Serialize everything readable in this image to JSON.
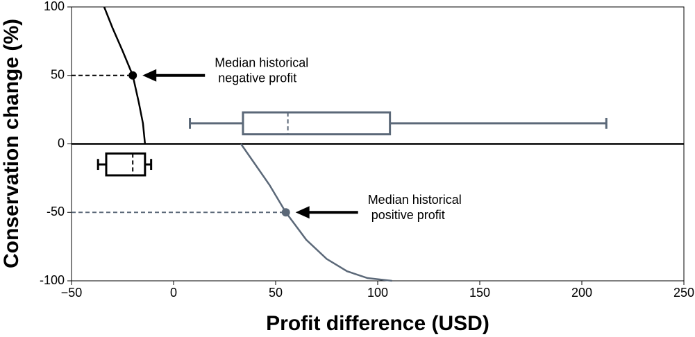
{
  "chart_data": {
    "type": "line",
    "xlabel": "Profit difference (USD)",
    "ylabel": "Conservation change (%)",
    "xlim": [
      -50,
      250
    ],
    "ylim": [
      -100,
      100
    ],
    "xticks": [
      {
        "value": -50,
        "label": "−50"
      },
      0,
      50,
      100,
      150,
      200,
      250
    ],
    "yticks": [
      -100,
      -50,
      0,
      50,
      100
    ],
    "hline": 0,
    "series": [
      {
        "color": "#000000",
        "x": [
          -34,
          -30,
          -25,
          -20,
          -17,
          -15,
          -14
        ],
        "values": [
          100,
          85,
          68,
          50,
          30,
          15,
          0
        ]
      },
      {
        "color": "#5b6878",
        "x": [
          33,
          40,
          47,
          55,
          65,
          75,
          85,
          95,
          107
        ],
        "values": [
          0,
          -15,
          -30,
          -50,
          -70,
          -84,
          -93,
          -98,
          -100
        ]
      }
    ],
    "points": [
      {
        "x": -20,
        "y": 50,
        "color": "#000000"
      },
      {
        "x": 55,
        "y": -50,
        "color": "#5b6878"
      }
    ],
    "annotations": [
      [
        "Median historical",
        " negative profit"
      ],
      [
        "Median historical",
        " positive profit"
      ]
    ],
    "boxplots": [
      {
        "y": 15,
        "width": 16,
        "whislo": 8,
        "q1": 34,
        "med": 56,
        "q3": 106,
        "whishi": 212,
        "color": "#5b6878"
      },
      {
        "y": -15,
        "width": 16,
        "whislo": -37,
        "q1": -33,
        "med": -20,
        "q3": -14,
        "whishi": -11,
        "color": "#000000"
      }
    ]
  }
}
